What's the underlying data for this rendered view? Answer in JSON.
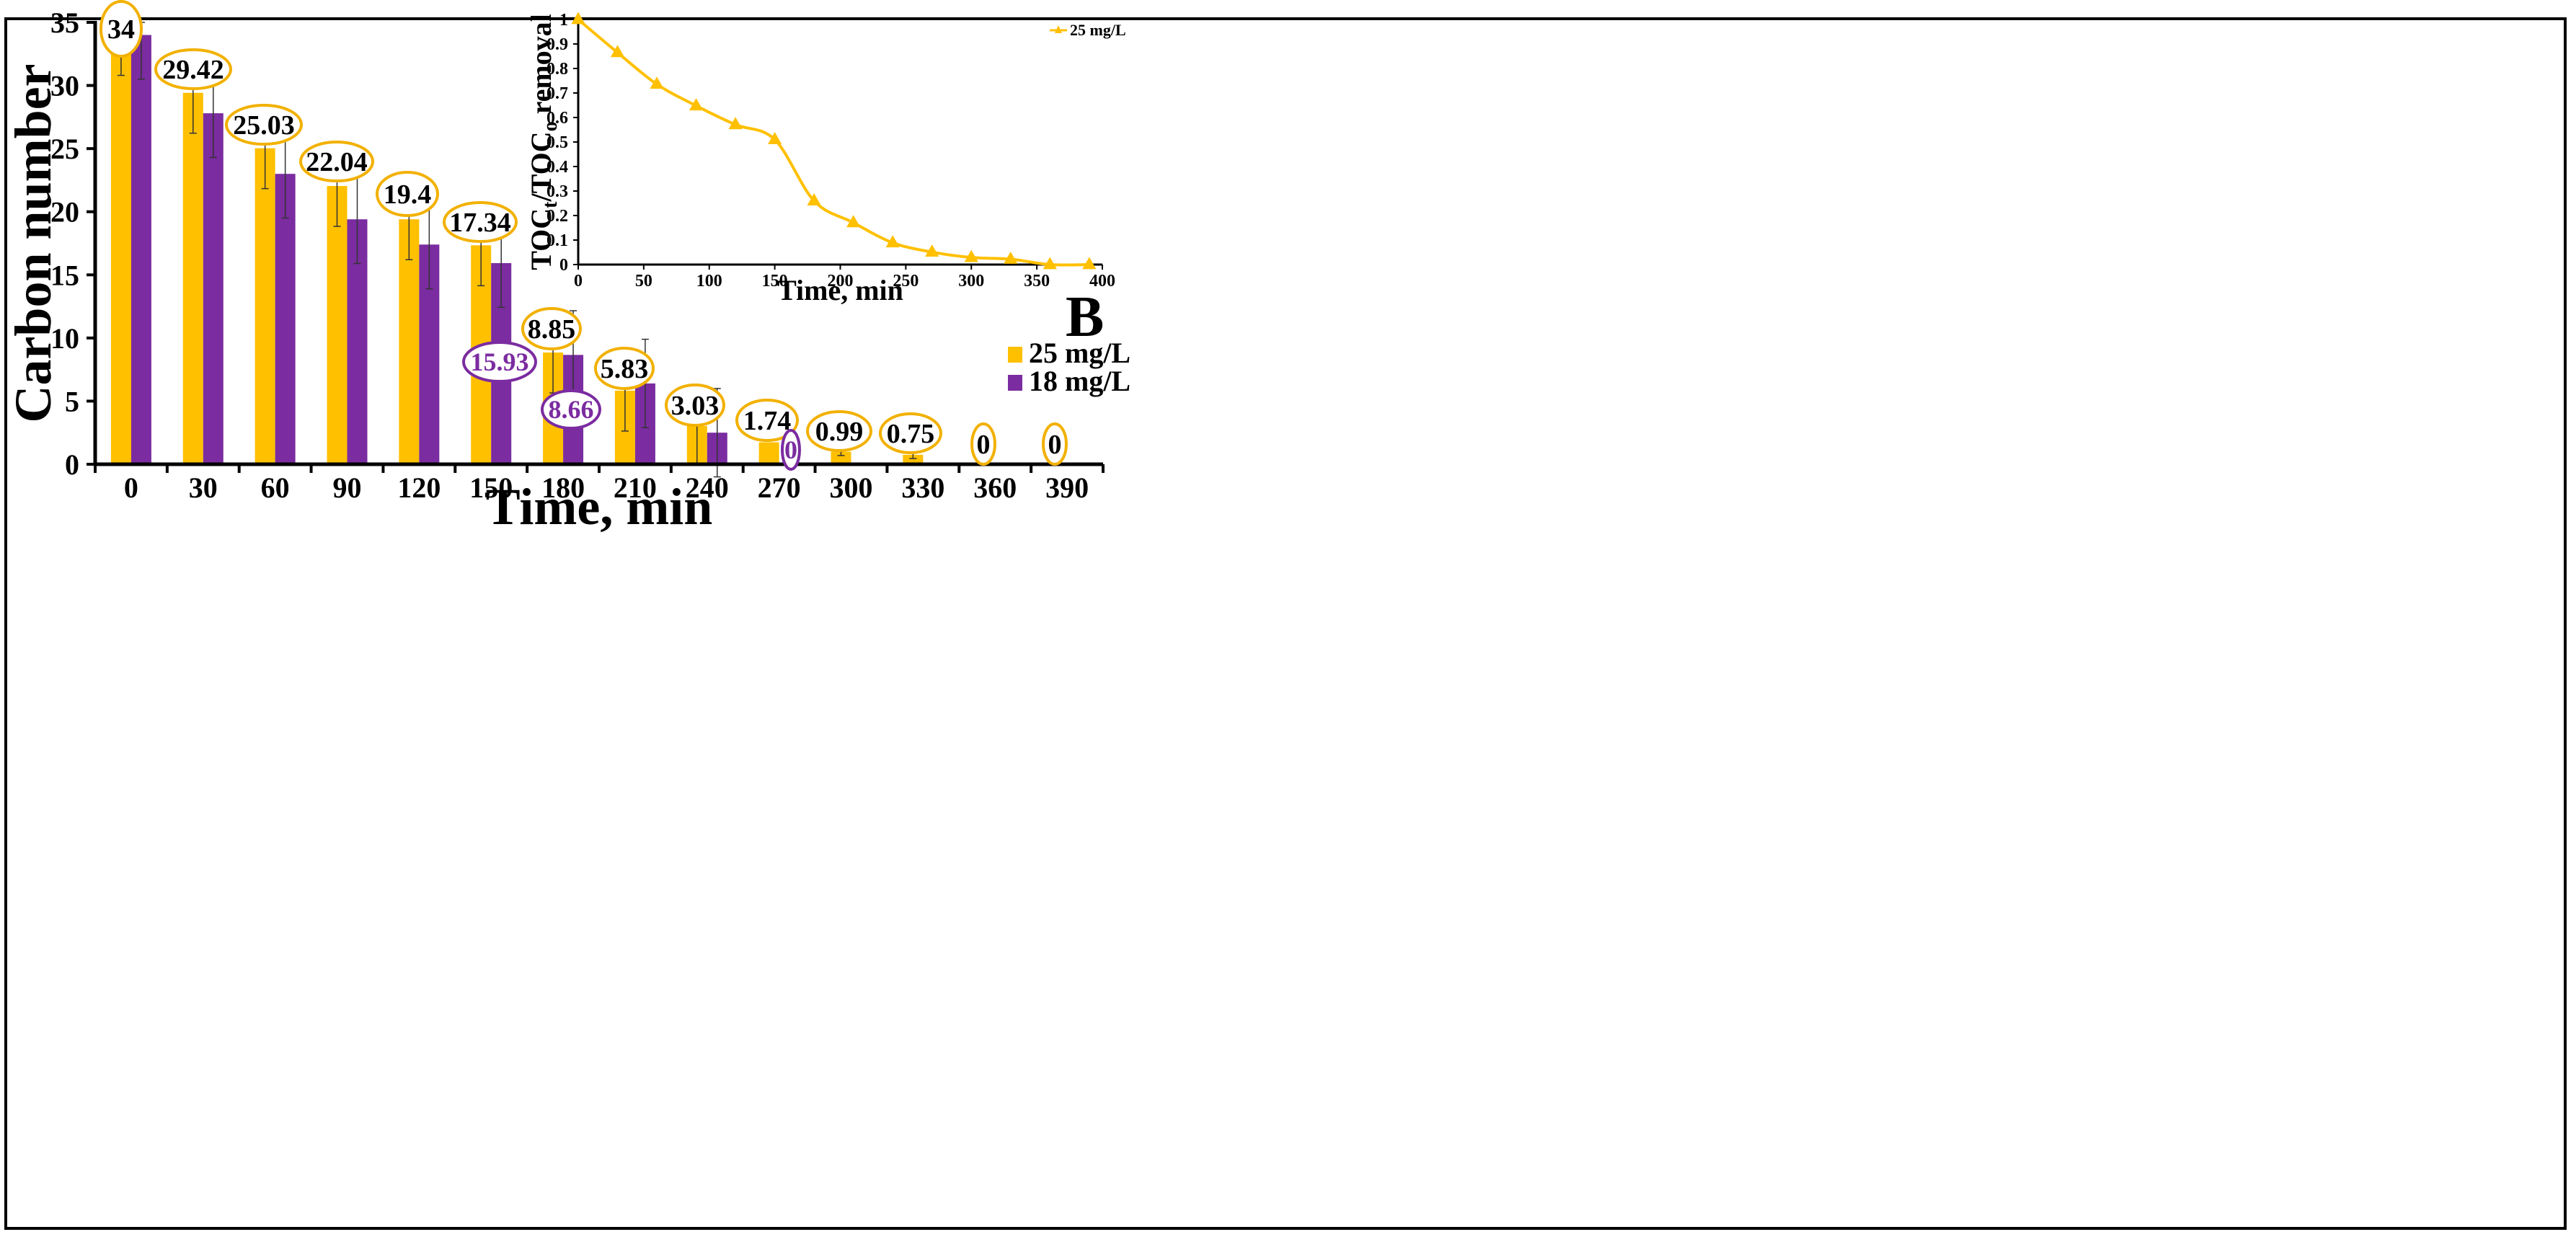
{
  "figure_label": "B",
  "colors": {
    "c25": "#FFC000",
    "c18": "#7B2CA0",
    "frame": "#000000",
    "ellipse25": "#F2B100",
    "ellipse18": "#7B2CA0"
  },
  "chart_data": [
    {
      "type": "bar",
      "title": "",
      "xlabel": "Time, min",
      "ylabel": "Carbon number",
      "ylim": [
        0,
        35
      ],
      "yticks": [
        0,
        5,
        10,
        15,
        20,
        25,
        30,
        35
      ],
      "categories": [
        "0",
        "30",
        "60",
        "90",
        "120",
        "150",
        "180",
        "210",
        "240",
        "270",
        "300",
        "330",
        "360",
        "390"
      ],
      "series": [
        {
          "name": "25 mg/L",
          "color": "#FFC000",
          "values": [
            34,
            29.42,
            25.03,
            22.04,
            19.4,
            17.34,
            8.85,
            5.83,
            3.03,
            1.74,
            0.99,
            0.75,
            0,
            0
          ],
          "errors": [
            3.2,
            3.2,
            3.2,
            3.2,
            3.2,
            3.2,
            3.2,
            3.2,
            3.0,
            0,
            0.3,
            0.3,
            0,
            0
          ],
          "labels": [
            "34",
            "29.42",
            "25.03",
            "22.04",
            "19.4",
            "17.34",
            "8.85",
            "5.83",
            "3.03",
            "1.74",
            "0.99",
            "0.75",
            "0",
            "0"
          ]
        },
        {
          "name": "18 mg/L",
          "color": "#7B2CA0",
          "values": [
            34,
            27.8,
            23,
            19.4,
            17.4,
            15.93,
            8.66,
            6.4,
            2.5,
            0,
            0,
            0,
            0,
            0
          ],
          "errors": [
            3.5,
            3.5,
            3.5,
            3.5,
            3.5,
            3.5,
            3.5,
            3.5,
            3.5,
            0,
            0,
            0,
            0,
            0
          ],
          "labels": [
            "15.93",
            "8.66",
            "0"
          ]
        }
      ],
      "legend": "right-middle"
    },
    {
      "type": "line",
      "title": "",
      "xlabel": "Time, min",
      "ylabel_main": "TOC",
      "ylabel_sub1": "t",
      "ylabel_mid": "/TOC",
      "ylabel_sub2": "o",
      "ylabel_end": " removal",
      "xlim": [
        0,
        400
      ],
      "ylim": [
        0,
        1
      ],
      "xticks": [
        0,
        50,
        100,
        150,
        200,
        250,
        300,
        350,
        400
      ],
      "yticks": [
        "0",
        "0.1",
        "0.2",
        "0.3",
        "0.4",
        "0.5",
        "0.6",
        "0.7",
        "0.8",
        "0.9",
        "1"
      ],
      "series": [
        {
          "name": "25 mg/L",
          "color": "#FFC000",
          "x": [
            0,
            30,
            60,
            90,
            120,
            150,
            180,
            210,
            240,
            270,
            300,
            330,
            360,
            390
          ],
          "y": [
            1,
            0.865,
            0.736,
            0.648,
            0.571,
            0.51,
            0.26,
            0.171,
            0.089,
            0.051,
            0.029,
            0.022,
            0,
            0
          ]
        }
      ],
      "legend": "top-right"
    }
  ]
}
